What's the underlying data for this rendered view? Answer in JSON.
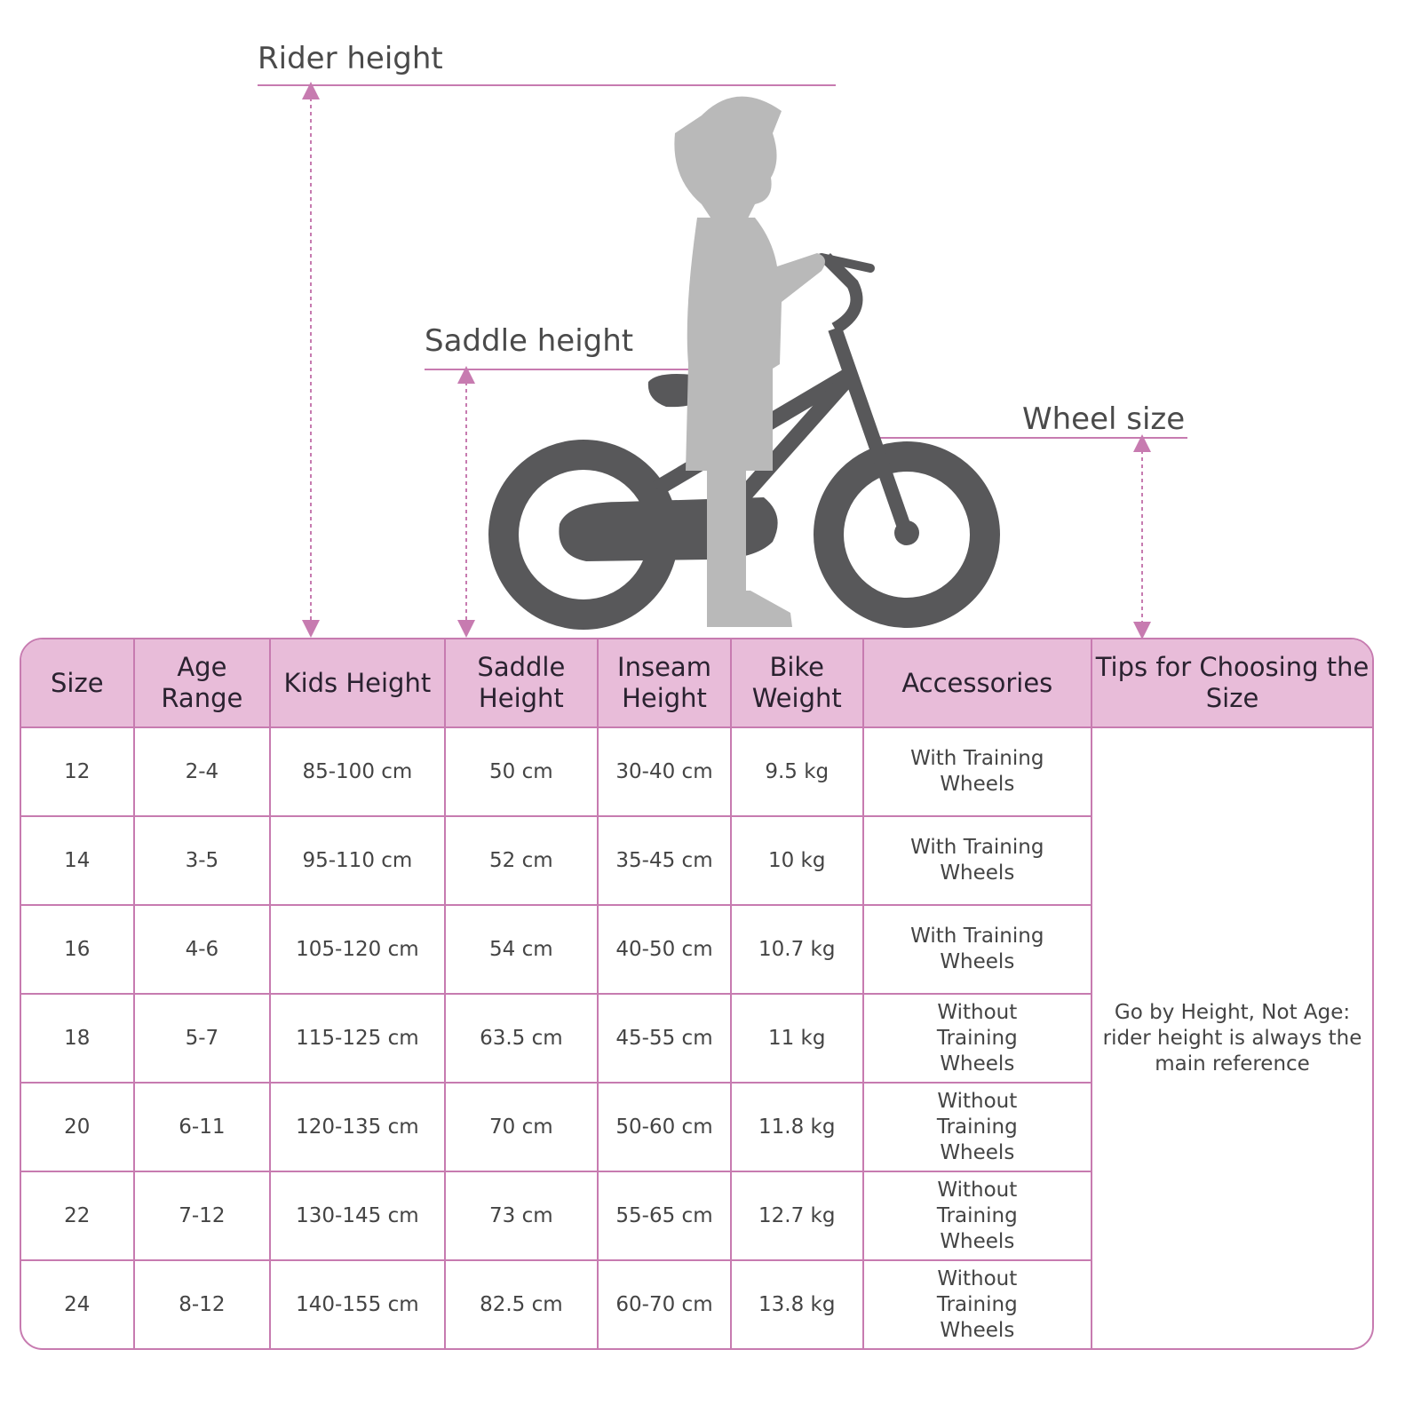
{
  "labels": {
    "rider_height": "Rider height",
    "saddle_height": "Saddle height",
    "wheel_size": "Wheel size"
  },
  "colors": {
    "accent": "#c77bb0",
    "header_bg": "#e8bcd9",
    "bike": "#58585a",
    "child": "#b9b9b9"
  },
  "table": {
    "headers": [
      "Size",
      "Age Range",
      "Kids Height",
      "Saddle Height",
      "Inseam Height",
      "Bike Weight",
      "Accessories",
      "Tips for Choosing the Size"
    ],
    "rows": [
      [
        "12",
        "2-4",
        "85-100 cm",
        "50 cm",
        "30-40 cm",
        "9.5 kg",
        "With Training Wheels"
      ],
      [
        "14",
        "3-5",
        "95-110 cm",
        "52 cm",
        "35-45 cm",
        "10 kg",
        "With Training Wheels"
      ],
      [
        "16",
        "4-6",
        "105-120 cm",
        "54 cm",
        "40-50 cm",
        "10.7 kg",
        "With Training Wheels"
      ],
      [
        "18",
        "5-7",
        "115-125 cm",
        "63.5 cm",
        "45-55 cm",
        "11 kg",
        "Without Training Wheels"
      ],
      [
        "20",
        "6-11",
        "120-135 cm",
        "70 cm",
        "50-60 cm",
        "11.8 kg",
        "Without Training Wheels"
      ],
      [
        "22",
        "7-12",
        "130-145 cm",
        "73 cm",
        "55-65 cm",
        "12.7 kg",
        "Without Training Wheels"
      ],
      [
        "24",
        "8-12",
        "140-155 cm",
        "82.5 cm",
        "60-70 cm",
        "13.8 kg",
        "Without Training Wheels"
      ]
    ],
    "tip": "Go by Height, Not Age: rider height is always the main reference"
  }
}
